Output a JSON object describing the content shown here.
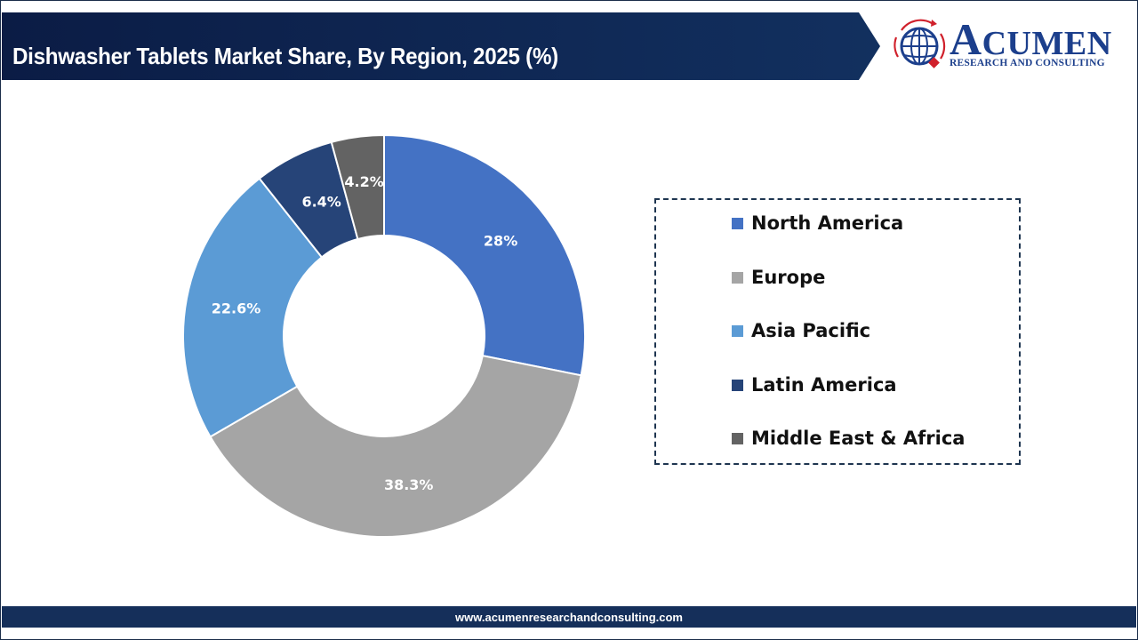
{
  "header": {
    "title": "Dishwasher Tablets Market Share, By Region, 2025 (%)"
  },
  "logo": {
    "initial": "A",
    "word_rest": "CUMEN",
    "subtitle": "RESEARCH AND CONSULTING",
    "colors": {
      "primary": "#1c3f8c",
      "accent": "#d0202b"
    }
  },
  "legend": {
    "items": [
      {
        "label": "North America",
        "color": "#4472c4"
      },
      {
        "label": "Europe",
        "color": "#a5a5a5"
      },
      {
        "label": "Asia Pacific",
        "color": "#5b9bd5"
      },
      {
        "label": "Latin America",
        "color": "#264478"
      },
      {
        "label": "Middle East & Africa",
        "color": "#636363"
      }
    ]
  },
  "footer": {
    "url": "www.acumenresearchandconsulting.com"
  },
  "chart_data": {
    "type": "pie",
    "subtype": "donut",
    "title": "Dishwasher Tablets Market Share, By Region, 2025 (%)",
    "categories": [
      "North America",
      "Europe",
      "Asia Pacific",
      "Latin America",
      "Middle East & Africa"
    ],
    "values": [
      28,
      38.3,
      22.6,
      6.4,
      4.2
    ],
    "labels": [
      "28%",
      "38.3%",
      "22.6%",
      "6.4%",
      "4.2%"
    ],
    "colors": [
      "#4472c4",
      "#a5a5a5",
      "#5b9bd5",
      "#264478",
      "#636363"
    ],
    "start_angle_deg": 0,
    "direction": "clockwise",
    "legend_position": "right",
    "unit": "%"
  }
}
